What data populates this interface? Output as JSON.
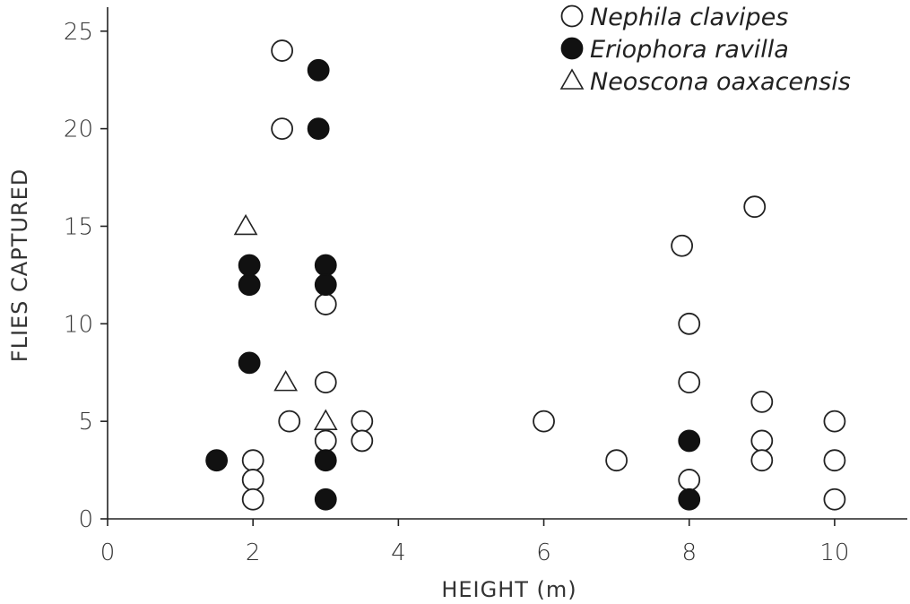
{
  "chart_data": {
    "type": "scatter",
    "title": "",
    "xlabel": "HEIGHT (m)",
    "ylabel": "FLIES CAPTURED",
    "xlim": [
      0,
      11
    ],
    "ylim": [
      0,
      26
    ],
    "xticks": [
      0,
      2,
      4,
      6,
      8,
      10
    ],
    "yticks": [
      0,
      5,
      10,
      15,
      20,
      25
    ],
    "legend_position": "top-right",
    "series": [
      {
        "name": "Nephila clavipes",
        "marker": "open-circle",
        "points": [
          [
            2.4,
            24
          ],
          [
            2.4,
            20
          ],
          [
            2.5,
            5
          ],
          [
            2,
            3
          ],
          [
            2,
            2
          ],
          [
            2,
            1
          ],
          [
            3,
            11
          ],
          [
            3,
            7
          ],
          [
            3,
            4
          ],
          [
            3.5,
            5
          ],
          [
            3.5,
            4
          ],
          [
            6,
            5
          ],
          [
            7,
            3
          ],
          [
            7.9,
            14
          ],
          [
            8,
            10
          ],
          [
            8,
            7
          ],
          [
            8,
            2
          ],
          [
            8.9,
            16
          ],
          [
            9,
            6
          ],
          [
            9,
            4
          ],
          [
            9,
            3
          ],
          [
            10,
            5
          ],
          [
            10,
            3
          ],
          [
            10,
            1
          ]
        ]
      },
      {
        "name": "Eriophora ravilla",
        "marker": "filled-circle",
        "points": [
          [
            2.9,
            23
          ],
          [
            2.9,
            20
          ],
          [
            3,
            13
          ],
          [
            3,
            12
          ],
          [
            3,
            3
          ],
          [
            3,
            1
          ],
          [
            1.95,
            13
          ],
          [
            1.95,
            12
          ],
          [
            1.95,
            8
          ],
          [
            1.5,
            3
          ],
          [
            8,
            4
          ],
          [
            8,
            1
          ]
        ]
      },
      {
        "name": "Neoscona oaxacensis",
        "marker": "open-triangle",
        "points": [
          [
            1.9,
            15
          ],
          [
            2.45,
            7
          ],
          [
            3,
            5
          ]
        ]
      }
    ]
  }
}
